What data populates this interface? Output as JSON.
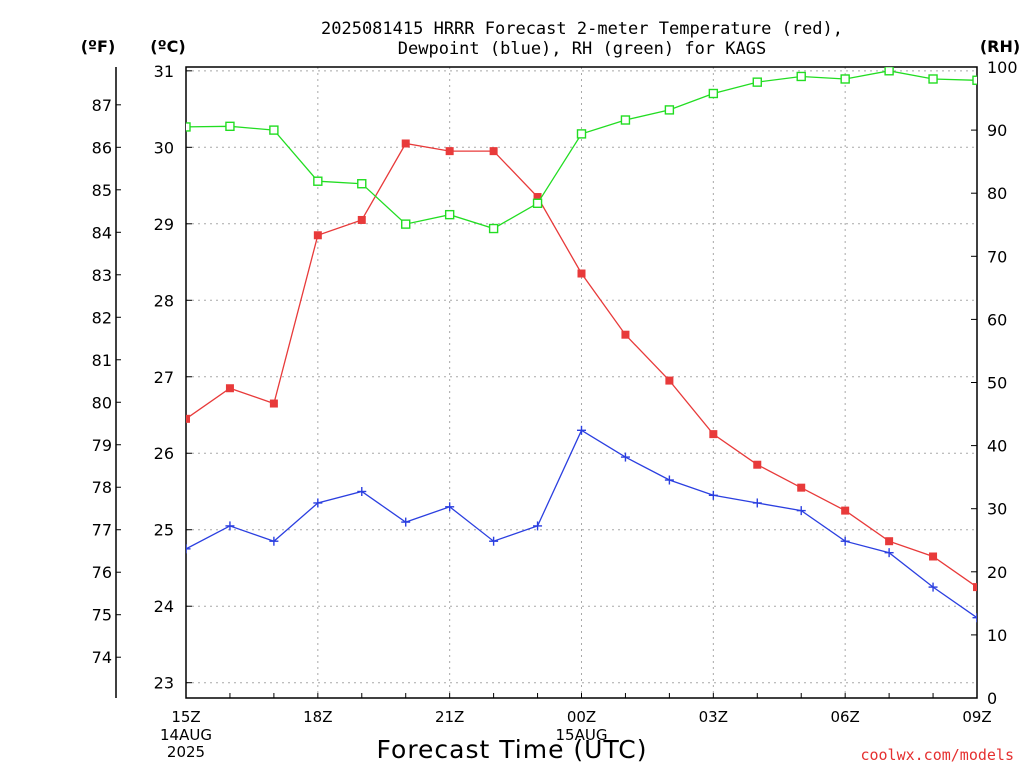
{
  "chart_data": {
    "type": "line",
    "title": [
      "2025081415 HRRR Forecast 2-meter Temperature (red),",
      "Dewpoint (blue), RH (green) for KAGS"
    ],
    "xlabel": "Forecast Time (UTC)",
    "credit": "coolwx.com/models",
    "units": {
      "fahrenheit": "(ºF)",
      "celsius": "(ºC)",
      "rh": "(RH)"
    },
    "x": [
      "15Z",
      "16Z",
      "17Z",
      "18Z",
      "19Z",
      "20Z",
      "21Z",
      "22Z",
      "23Z",
      "00Z",
      "01Z",
      "02Z",
      "03Z",
      "04Z",
      "05Z",
      "06Z",
      "07Z",
      "08Z",
      "09Z"
    ],
    "x_ticks": [
      {
        "label": "15Z",
        "sub": [
          "14AUG",
          "2025"
        ]
      },
      {
        "label": "18Z",
        "sub": []
      },
      {
        "label": "21Z",
        "sub": []
      },
      {
        "label": "00Z",
        "sub": [
          "15AUG"
        ]
      },
      {
        "label": "03Z",
        "sub": []
      },
      {
        "label": "06Z",
        "sub": []
      },
      {
        "label": "09Z",
        "sub": []
      }
    ],
    "celsius_axis": {
      "range": [
        22.8,
        31.05
      ],
      "ticks": [
        23,
        24,
        25,
        26,
        27,
        28,
        29,
        30,
        31
      ]
    },
    "fahrenheit_axis": {
      "ticks": [
        74,
        75,
        76,
        77,
        78,
        79,
        80,
        81,
        82,
        83,
        84,
        85,
        86,
        87
      ]
    },
    "rh_axis": {
      "range": [
        0,
        100
      ],
      "ticks": [
        0,
        10,
        20,
        30,
        40,
        50,
        60,
        70,
        80,
        90,
        100
      ]
    },
    "grid": true,
    "series": [
      {
        "name": "Temperature (red)",
        "axis": "celsius",
        "color": "#e83a3a",
        "marker": "filled-square",
        "values": [
          26.45,
          26.85,
          26.65,
          28.85,
          29.05,
          30.05,
          29.95,
          29.95,
          29.35,
          28.35,
          27.55,
          26.95,
          26.25,
          25.85,
          25.55,
          25.25,
          24.85,
          24.65,
          24.25
        ]
      },
      {
        "name": "Dewpoint (blue)",
        "axis": "celsius",
        "color": "#2b3fe0",
        "marker": "plus",
        "values": [
          24.75,
          25.05,
          24.85,
          25.35,
          25.5,
          25.1,
          25.3,
          24.85,
          25.05,
          26.3,
          25.95,
          25.65,
          25.45,
          25.35,
          25.25,
          24.85,
          24.7,
          24.25,
          23.85
        ]
      },
      {
        "name": "RH (green)",
        "axis": "rh",
        "color": "#22dd22",
        "marker": "open-square",
        "values": [
          90.5,
          90.6,
          90.0,
          81.9,
          81.5,
          75.1,
          76.6,
          74.4,
          78.4,
          89.4,
          91.6,
          93.2,
          95.8,
          97.6,
          98.5,
          98.1,
          99.4,
          98.1,
          97.9
        ]
      }
    ]
  }
}
